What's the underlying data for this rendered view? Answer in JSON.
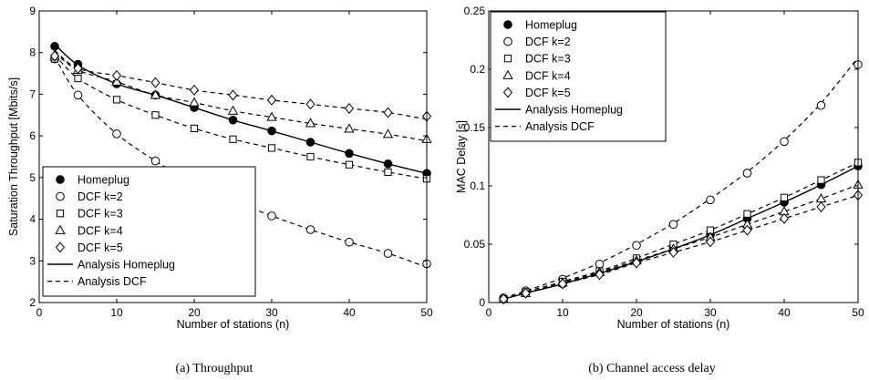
{
  "chart_data": [
    {
      "type": "scatter",
      "caption": "(a) Throughput",
      "xlabel": "Number of stations (n)",
      "ylabel": "Saturation Throughput [Mbits/s]",
      "xlim": [
        0,
        50
      ],
      "ylim": [
        2,
        9
      ],
      "xticks": [
        "0",
        "10",
        "20",
        "30",
        "40",
        "50"
      ],
      "yticks": [
        "2",
        "3",
        "4",
        "5",
        "6",
        "7",
        "8",
        "9"
      ],
      "grid": false,
      "legend_position": "lower-left",
      "x": [
        2,
        5,
        10,
        15,
        20,
        25,
        30,
        35,
        40,
        45,
        50
      ],
      "series": [
        {
          "name": "Homeplug",
          "marker": "filled-circle",
          "values": [
            8.15,
            7.72,
            7.25,
            6.98,
            6.68,
            6.38,
            6.12,
            5.85,
            5.58,
            5.33,
            5.1
          ]
        },
        {
          "name": "DCF k=2",
          "marker": "open-circle",
          "values": [
            7.85,
            6.98,
            6.05,
            5.4,
            4.85,
            4.45,
            4.08,
            3.75,
            3.45,
            3.18,
            2.93
          ]
        },
        {
          "name": "DCF k=3",
          "marker": "open-square",
          "values": [
            7.85,
            7.38,
            6.87,
            6.5,
            6.18,
            5.92,
            5.71,
            5.5,
            5.31,
            5.13,
            4.97
          ]
        },
        {
          "name": "DCF k=4",
          "marker": "open-triangle",
          "values": [
            7.9,
            7.58,
            7.3,
            6.98,
            6.8,
            6.6,
            6.45,
            6.3,
            6.17,
            6.04,
            5.92
          ]
        },
        {
          "name": "DCF k=5",
          "marker": "open-diamond",
          "values": [
            7.92,
            7.62,
            7.45,
            7.28,
            7.1,
            6.98,
            6.86,
            6.76,
            6.66,
            6.56,
            6.47
          ]
        },
        {
          "name": "Analysis Homeplug",
          "line": "solid",
          "values": [
            8.2,
            7.7,
            7.25,
            6.98,
            6.68,
            6.38,
            6.12,
            5.85,
            5.58,
            5.33,
            5.1
          ]
        },
        {
          "name": "Analysis DCF",
          "line": "dashed",
          "curves": [
            [
              7.9,
              6.98,
              6.05,
              5.4,
              4.85,
              4.45,
              4.08,
              3.75,
              3.45,
              3.18,
              2.85
            ],
            [
              7.95,
              7.38,
              6.87,
              6.5,
              6.18,
              5.92,
              5.71,
              5.5,
              5.31,
              5.13,
              4.97
            ],
            [
              8.0,
              7.58,
              7.3,
              6.98,
              6.8,
              6.6,
              6.45,
              6.3,
              6.17,
              6.04,
              5.88
            ],
            [
              8.05,
              7.62,
              7.45,
              7.28,
              7.1,
              6.98,
              6.86,
              6.76,
              6.66,
              6.56,
              6.4
            ]
          ]
        }
      ]
    },
    {
      "type": "scatter",
      "caption": "(b) Channel access delay",
      "xlabel": "Number of stations (n)",
      "ylabel": "MAC Delay [s]",
      "xlim": [
        0,
        50
      ],
      "ylim": [
        0,
        0.25
      ],
      "xticks": [
        "0",
        "10",
        "20",
        "30",
        "40",
        "50"
      ],
      "yticks": [
        "0",
        "0.05",
        "0.1",
        "0.15",
        "0.2",
        "0.25"
      ],
      "grid": false,
      "legend_position": "top-left",
      "x": [
        2,
        5,
        10,
        15,
        20,
        25,
        30,
        35,
        40,
        45,
        50
      ],
      "series": [
        {
          "name": "Homeplug",
          "marker": "filled-circle",
          "values": [
            0.003,
            0.008,
            0.016,
            0.025,
            0.035,
            0.047,
            0.058,
            0.072,
            0.086,
            0.101,
            0.117
          ]
        },
        {
          "name": "DCF k=2",
          "marker": "open-circle",
          "values": [
            0.004,
            0.01,
            0.02,
            0.033,
            0.049,
            0.067,
            0.088,
            0.111,
            0.138,
            0.169,
            0.204
          ]
        },
        {
          "name": "DCF k=3",
          "marker": "open-square",
          "values": [
            0.003,
            0.009,
            0.018,
            0.027,
            0.038,
            0.05,
            0.062,
            0.076,
            0.09,
            0.105,
            0.12
          ]
        },
        {
          "name": "DCF k=4",
          "marker": "open-triangle",
          "values": [
            0.003,
            0.008,
            0.017,
            0.026,
            0.036,
            0.046,
            0.056,
            0.067,
            0.078,
            0.089,
            0.101
          ]
        },
        {
          "name": "DCF k=5",
          "marker": "open-diamond",
          "values": [
            0.003,
            0.008,
            0.016,
            0.024,
            0.034,
            0.043,
            0.052,
            0.062,
            0.072,
            0.082,
            0.092
          ]
        },
        {
          "name": "Analysis Homeplug",
          "line": "solid",
          "values": [
            0.003,
            0.008,
            0.016,
            0.025,
            0.035,
            0.046,
            0.058,
            0.072,
            0.086,
            0.101,
            0.117
          ]
        },
        {
          "name": "Analysis DCF",
          "line": "dashed",
          "curves": [
            [
              0.004,
              0.01,
              0.021,
              0.034,
              0.05,
              0.068,
              0.089,
              0.112,
              0.139,
              0.171,
              0.21
            ],
            [
              0.003,
              0.009,
              0.018,
              0.027,
              0.038,
              0.05,
              0.062,
              0.076,
              0.09,
              0.105,
              0.12
            ],
            [
              0.003,
              0.008,
              0.017,
              0.026,
              0.036,
              0.046,
              0.056,
              0.067,
              0.078,
              0.089,
              0.101
            ],
            [
              0.003,
              0.008,
              0.016,
              0.024,
              0.034,
              0.043,
              0.052,
              0.062,
              0.072,
              0.082,
              0.092
            ]
          ]
        }
      ]
    }
  ]
}
